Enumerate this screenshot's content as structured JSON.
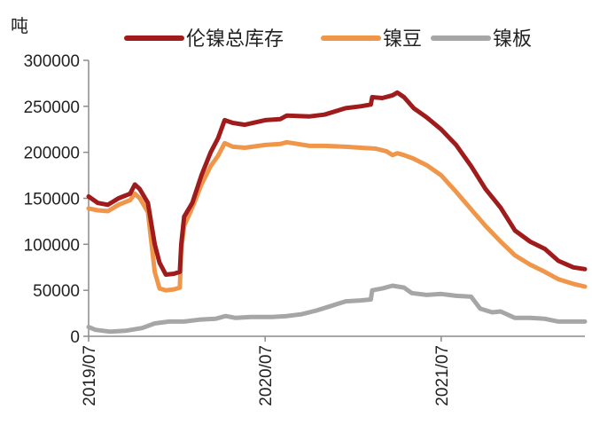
{
  "chart_data": {
    "type": "line",
    "title": "",
    "ylabel": "吨",
    "xlabel": "",
    "ylim": [
      0,
      300000
    ],
    "yticks": [
      0,
      50000,
      100000,
      150000,
      200000,
      250000,
      300000
    ],
    "ytick_labels": [
      "0",
      "50000",
      "100000",
      "150000",
      "200000",
      "250000",
      "300000"
    ],
    "xlim": [
      "2019-07-01",
      "2022-04-25"
    ],
    "xticks": [
      "2019-07-01",
      "2020-07-01",
      "2021-07-01"
    ],
    "xtick_labels": [
      "2019/07",
      "2020/07",
      "2021/07"
    ],
    "grid": false,
    "legend": "top",
    "series": [
      {
        "name": "伦镍总库存",
        "color": "#a01c1c",
        "points": [
          [
            "2019-07-01",
            152000
          ],
          [
            "2019-07-20",
            145000
          ],
          [
            "2019-08-10",
            143000
          ],
          [
            "2019-09-01",
            150000
          ],
          [
            "2019-09-25",
            155000
          ],
          [
            "2019-10-05",
            165000
          ],
          [
            "2019-10-15",
            160000
          ],
          [
            "2019-11-01",
            145000
          ],
          [
            "2019-11-15",
            100000
          ],
          [
            "2019-11-25",
            80000
          ],
          [
            "2019-12-08",
            67000
          ],
          [
            "2019-12-25",
            68000
          ],
          [
            "2020-01-06",
            70000
          ],
          [
            "2020-01-09",
            100000
          ],
          [
            "2020-01-15",
            130000
          ],
          [
            "2020-02-01",
            145000
          ],
          [
            "2020-02-20",
            175000
          ],
          [
            "2020-03-10",
            200000
          ],
          [
            "2020-03-25",
            215000
          ],
          [
            "2020-04-08",
            235000
          ],
          [
            "2020-04-25",
            232000
          ],
          [
            "2020-05-20",
            230000
          ],
          [
            "2020-07-01",
            235000
          ],
          [
            "2020-08-01",
            236000
          ],
          [
            "2020-08-15",
            240000
          ],
          [
            "2020-10-01",
            239000
          ],
          [
            "2020-11-01",
            241000
          ],
          [
            "2020-12-15",
            248000
          ],
          [
            "2021-01-15",
            250000
          ],
          [
            "2021-02-05",
            252000
          ],
          [
            "2021-02-08",
            260000
          ],
          [
            "2021-03-01",
            259000
          ],
          [
            "2021-03-22",
            262000
          ],
          [
            "2021-04-01",
            265000
          ],
          [
            "2021-04-15",
            260000
          ],
          [
            "2021-05-05",
            248000
          ],
          [
            "2021-06-01",
            238000
          ],
          [
            "2021-07-01",
            225000
          ],
          [
            "2021-08-01",
            208000
          ],
          [
            "2021-09-01",
            185000
          ],
          [
            "2021-10-01",
            160000
          ],
          [
            "2021-11-01",
            140000
          ],
          [
            "2021-12-01",
            115000
          ],
          [
            "2022-01-01",
            103000
          ],
          [
            "2022-02-01",
            95000
          ],
          [
            "2022-03-01",
            82000
          ],
          [
            "2022-04-01",
            75000
          ],
          [
            "2022-04-25",
            73000
          ]
        ]
      },
      {
        "name": "镍豆",
        "color": "#f0964a",
        "points": [
          [
            "2019-07-01",
            139000
          ],
          [
            "2019-07-20",
            137000
          ],
          [
            "2019-08-10",
            136000
          ],
          [
            "2019-09-01",
            143000
          ],
          [
            "2019-09-25",
            148000
          ],
          [
            "2019-10-05",
            155000
          ],
          [
            "2019-10-15",
            150000
          ],
          [
            "2019-11-01",
            135000
          ],
          [
            "2019-11-15",
            70000
          ],
          [
            "2019-11-25",
            52000
          ],
          [
            "2019-12-08",
            50000
          ],
          [
            "2019-12-25",
            51000
          ],
          [
            "2020-01-06",
            53000
          ],
          [
            "2020-01-09",
            95000
          ],
          [
            "2020-01-15",
            120000
          ],
          [
            "2020-02-01",
            140000
          ],
          [
            "2020-02-20",
            165000
          ],
          [
            "2020-03-10",
            185000
          ],
          [
            "2020-03-25",
            196000
          ],
          [
            "2020-04-08",
            210000
          ],
          [
            "2020-04-25",
            206000
          ],
          [
            "2020-05-20",
            205000
          ],
          [
            "2020-07-01",
            208000
          ],
          [
            "2020-08-01",
            209000
          ],
          [
            "2020-08-15",
            211000
          ],
          [
            "2020-10-01",
            207000
          ],
          [
            "2020-11-01",
            207000
          ],
          [
            "2020-12-15",
            206000
          ],
          [
            "2021-01-15",
            205000
          ],
          [
            "2021-02-15",
            204000
          ],
          [
            "2021-03-10",
            201000
          ],
          [
            "2021-03-22",
            197000
          ],
          [
            "2021-04-01",
            199000
          ],
          [
            "2021-04-15",
            197000
          ],
          [
            "2021-05-05",
            193000
          ],
          [
            "2021-06-01",
            186000
          ],
          [
            "2021-07-01",
            175000
          ],
          [
            "2021-08-01",
            157000
          ],
          [
            "2021-09-01",
            138000
          ],
          [
            "2021-10-01",
            120000
          ],
          [
            "2021-11-01",
            103000
          ],
          [
            "2021-12-01",
            88000
          ],
          [
            "2022-01-01",
            78000
          ],
          [
            "2022-02-01",
            70000
          ],
          [
            "2022-03-01",
            62000
          ],
          [
            "2022-04-01",
            57000
          ],
          [
            "2022-04-25",
            54000
          ]
        ]
      },
      {
        "name": "镍板",
        "color": "#a6a6a6",
        "points": [
          [
            "2019-07-01",
            10000
          ],
          [
            "2019-07-15",
            7000
          ],
          [
            "2019-08-15",
            5000
          ],
          [
            "2019-09-15",
            6000
          ],
          [
            "2019-10-20",
            9000
          ],
          [
            "2019-11-15",
            14000
          ],
          [
            "2019-12-15",
            16000
          ],
          [
            "2020-01-15",
            16000
          ],
          [
            "2020-02-15",
            18000
          ],
          [
            "2020-03-20",
            19000
          ],
          [
            "2020-04-10",
            22000
          ],
          [
            "2020-05-01",
            20000
          ],
          [
            "2020-06-01",
            21000
          ],
          [
            "2020-07-15",
            21000
          ],
          [
            "2020-08-15",
            22000
          ],
          [
            "2020-09-15",
            24000
          ],
          [
            "2020-10-15",
            28000
          ],
          [
            "2020-11-15",
            33000
          ],
          [
            "2020-12-15",
            38000
          ],
          [
            "2021-01-15",
            39000
          ],
          [
            "2021-02-05",
            40000
          ],
          [
            "2021-02-08",
            50000
          ],
          [
            "2021-03-01",
            52000
          ],
          [
            "2021-03-22",
            55000
          ],
          [
            "2021-04-15",
            53000
          ],
          [
            "2021-05-01",
            47000
          ],
          [
            "2021-06-01",
            45000
          ],
          [
            "2021-07-01",
            46000
          ],
          [
            "2021-08-01",
            44000
          ],
          [
            "2021-09-01",
            43000
          ],
          [
            "2021-09-20",
            30000
          ],
          [
            "2021-10-15",
            26000
          ],
          [
            "2021-11-01",
            27000
          ],
          [
            "2021-12-01",
            20000
          ],
          [
            "2022-01-01",
            20000
          ],
          [
            "2022-02-01",
            19000
          ],
          [
            "2022-03-01",
            16000
          ],
          [
            "2022-04-01",
            16000
          ],
          [
            "2022-04-25",
            16000
          ]
        ]
      }
    ]
  }
}
